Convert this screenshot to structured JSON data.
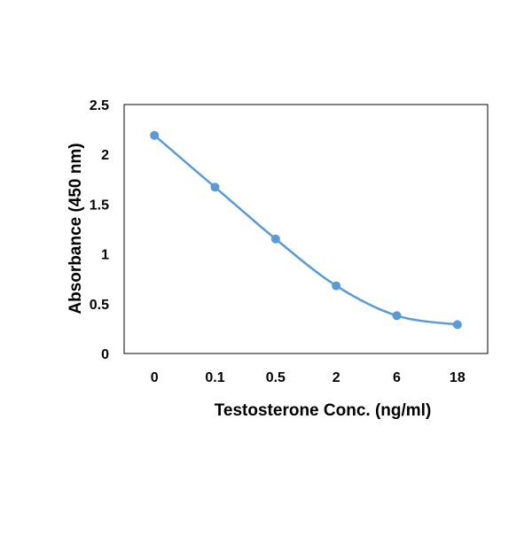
{
  "chart_data": {
    "type": "line",
    "title": "",
    "xlabel": "Testosterone Conc. (ng/ml)",
    "ylabel": "Absorbance (450 nm)",
    "categories": [
      "0",
      "0.1",
      "0.5",
      "2",
      "6",
      "18"
    ],
    "series": [
      {
        "name": "Absorbance",
        "values": [
          2.19,
          1.67,
          1.15,
          0.68,
          0.38,
          0.29
        ],
        "color": "#5B9BD5"
      }
    ],
    "ylim": [
      0,
      2.5
    ],
    "yticks": [
      0,
      0.5,
      1,
      1.5,
      2,
      2.5
    ],
    "ytick_labels": [
      "0",
      "0.5",
      "1",
      "1.5",
      "2",
      "2.5"
    ],
    "grid": false,
    "smooth": true,
    "frame_color": "#000000"
  }
}
